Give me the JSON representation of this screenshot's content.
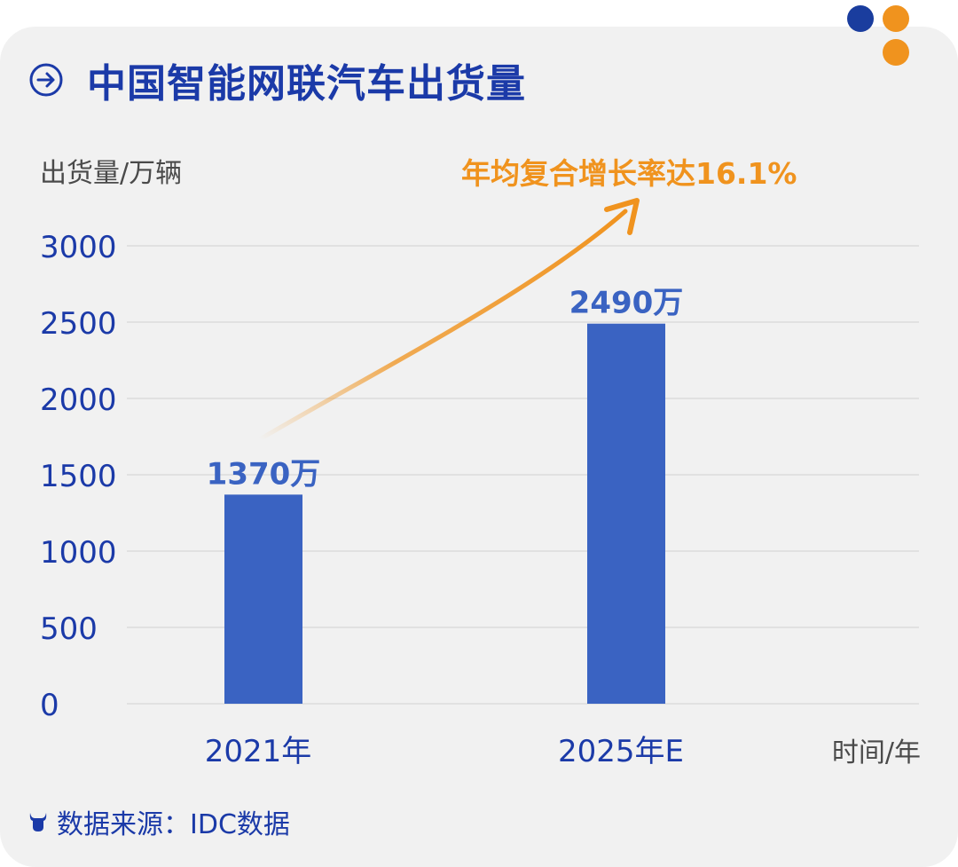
{
  "header": {
    "title": "中国智能网联汽车出货量",
    "icon": "arrow-right-circle-icon"
  },
  "footer": {
    "source": "数据来源：IDC数据",
    "icon": "bull-icon"
  },
  "decor": {
    "dot_colors": [
      "#1a3d9e",
      "#f0931e",
      "#f0931e"
    ]
  },
  "colors": {
    "bar": "#3a63c2",
    "axis_text": "#1b3aa8",
    "accent": "#f0931e",
    "label_gray": "#4a4a4a"
  },
  "chart_data": {
    "type": "bar",
    "categories": [
      "2021年",
      "2025年E"
    ],
    "values": [
      1370,
      2490
    ],
    "data_labels": [
      "1370万",
      "2490万"
    ],
    "ylabel": "出货量/万辆",
    "xlabel": "时间/年",
    "ylim": [
      0,
      3000
    ],
    "yticks": [
      0,
      500,
      1000,
      1500,
      2000,
      2500,
      3000
    ],
    "grid": true,
    "annotation": "年均复合增长率达16.1%"
  }
}
